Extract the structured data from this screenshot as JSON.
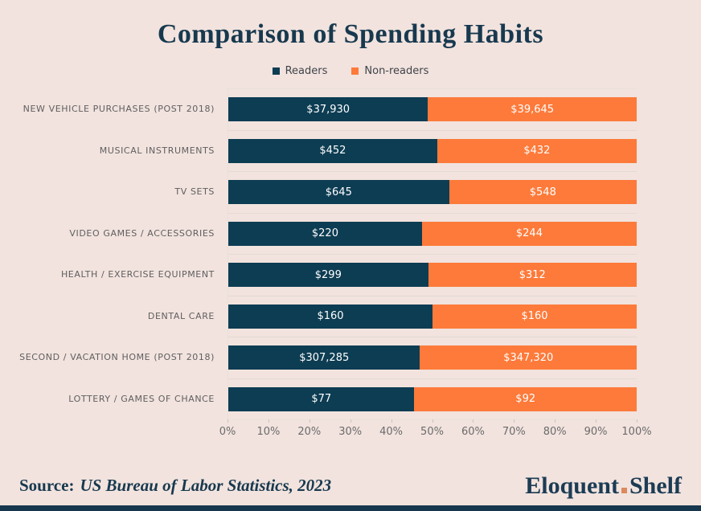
{
  "title": "Comparison of Spending Habits",
  "legend": {
    "readers": "Readers",
    "non_readers": "Non-readers"
  },
  "colors": {
    "background": "#f2e3de",
    "readers": "#0d3d53",
    "non_readers": "#fd7a3a",
    "title_navy": "#17394f",
    "brand_dot": "#db8a60",
    "bottom_strip": "#16374d",
    "value_label": "#ffffff",
    "category_label": "#5f5f5f",
    "tick_label": "#6b6b6b"
  },
  "chart_data": {
    "type": "bar",
    "subtype": "horizontal-100pct-stacked",
    "title": "Comparison of Spending Habits",
    "categories": [
      "NEW VEHICLE PURCHASES (POST 2018)",
      "MUSICAL INSTRUMENTS",
      "TV SETS",
      "VIDEO GAMES / ACCESSORIES",
      "HEALTH / EXERCISE EQUIPMENT",
      "DENTAL CARE",
      "SECOND / VACATION HOME (POST 2018)",
      "LOTTERY / GAMES OF CHANCE"
    ],
    "series": [
      {
        "name": "Readers",
        "color": "#0d3d53",
        "values": [
          37930,
          452,
          645,
          220,
          299,
          160,
          307285,
          77
        ],
        "labels": [
          "$37,930",
          "$452",
          "$645",
          "$220",
          "$299",
          "$160",
          "$307,285",
          "$77"
        ]
      },
      {
        "name": "Non-readers",
        "color": "#fd7a3a",
        "values": [
          39645,
          432,
          548,
          244,
          312,
          160,
          347320,
          92
        ],
        "labels": [
          "$39,645",
          "$432",
          "$548",
          "$244",
          "$312",
          "$160",
          "$347,320",
          "$92"
        ]
      }
    ],
    "x_ticks": [
      "0%",
      "10%",
      "20%",
      "30%",
      "40%",
      "50%",
      "60%",
      "70%",
      "80%",
      "90%",
      "100%"
    ],
    "xlim": [
      0,
      100
    ],
    "xlabel": "",
    "ylabel": "",
    "legend_position": "top-center",
    "grid": "horizontal row separators only"
  },
  "footer": {
    "source_label": "Source:",
    "source_text": "US Bureau of Labor Statistics, 2023",
    "brand_left": "Eloquent",
    "brand_dot": ".",
    "brand_right": "Shelf"
  }
}
